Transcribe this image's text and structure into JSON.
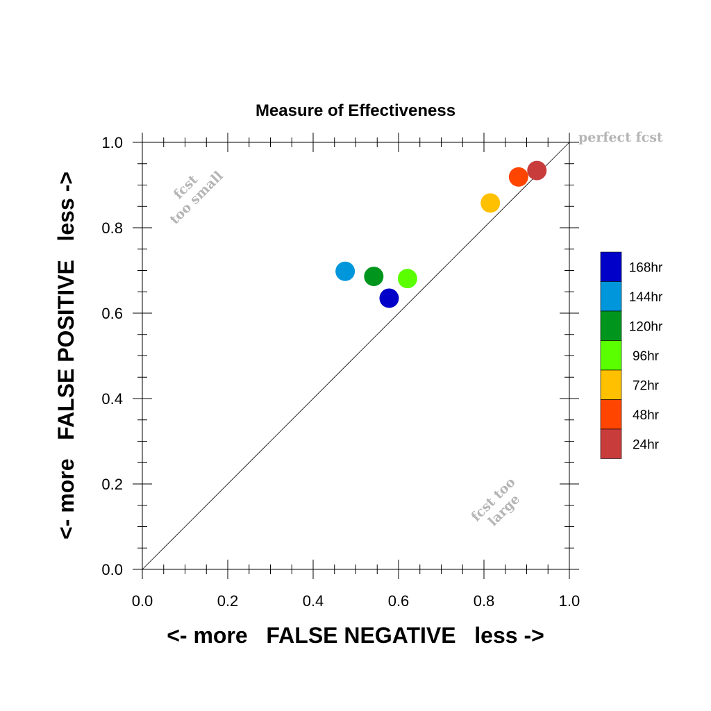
{
  "chart_data": {
    "type": "scatter",
    "title": "Measure of Effectiveness",
    "xlabel": "<- more   FALSE NEGATIVE   less ->",
    "ylabel": "<- more   FALSE POSITIVE   less ->",
    "xlim": [
      0.0,
      1.0
    ],
    "ylim": [
      0.0,
      1.0
    ],
    "x_ticks": [
      "0.0",
      "0.2",
      "0.4",
      "0.6",
      "0.8",
      "1.0"
    ],
    "y_ticks": [
      "0.0",
      "0.2",
      "0.4",
      "0.6",
      "0.8",
      "1.0"
    ],
    "grid": false,
    "reference_line": {
      "from": [
        0,
        0
      ],
      "to": [
        1,
        1
      ]
    },
    "annotations": {
      "perfect": "perfect fcst",
      "too_small_1": "fcst",
      "too_small_2": "too small",
      "too_large_1": "fcst too",
      "too_large_2": "large"
    },
    "legend_position": "right",
    "series": [
      {
        "name": "24hr",
        "color": "#c83c3c",
        "x": 0.924,
        "y": 0.934
      },
      {
        "name": "48hr",
        "color": "#ff4500",
        "x": 0.881,
        "y": 0.919
      },
      {
        "name": "72hr",
        "color": "#ffc000",
        "x": 0.815,
        "y": 0.858
      },
      {
        "name": "96hr",
        "color": "#5aff00",
        "x": 0.621,
        "y": 0.681
      },
      {
        "name": "120hr",
        "color": "#00961e",
        "x": 0.542,
        "y": 0.686
      },
      {
        "name": "144hr",
        "color": "#0096dc",
        "x": 0.475,
        "y": 0.698
      },
      {
        "name": "168hr",
        "color": "#0000c8",
        "x": 0.578,
        "y": 0.635
      }
    ],
    "legend_order": [
      "168hr",
      "144hr",
      "120hr",
      "96hr",
      "72hr",
      "48hr",
      "24hr"
    ]
  }
}
